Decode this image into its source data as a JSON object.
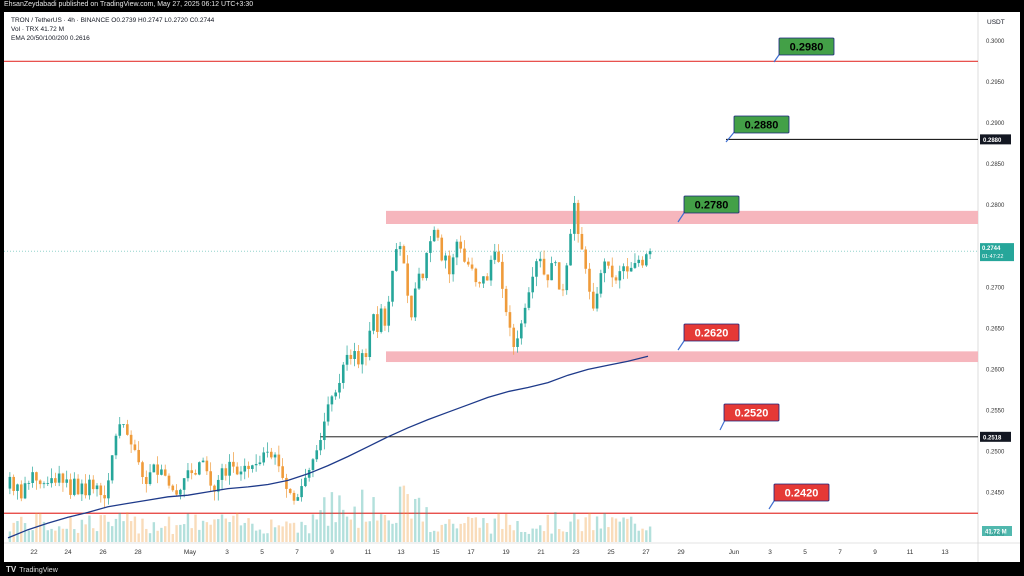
{
  "header": {
    "publisher_line": "EhsanZeydabadi published on TradingView.com, May 27, 2025 06:12 UTC+3:30"
  },
  "legend": {
    "symbol_line": "TRON / TetherUS · 4h · BINANCE  O0.2739  H0.2747  L0.2720  C0.2744",
    "volume_line": "Vol · TRX  41.72 M",
    "ema_line": "EMA 20/50/100/200  0.2616"
  },
  "footer": {
    "brand": "TradingView",
    "logo_glyph": "TV"
  },
  "colors": {
    "up": "#26a69a",
    "down": "#ef9b3a",
    "ema": "#1e3a8a",
    "red_line": "#e53935",
    "zone": "#f6b6bd",
    "label_green": "#43a047",
    "label_red": "#e53935"
  },
  "chart_data": {
    "type": "candlestick",
    "symbol": "TRON / TetherUS",
    "interval": "4h",
    "exchange": "BINANCE",
    "currency": "USDT",
    "ohlc_last": {
      "open": 0.2739,
      "high": 0.2747,
      "low": 0.272,
      "close": 0.2744
    },
    "volume_last": "41.72 M",
    "ema_value": 0.2616,
    "last_price_label": "0.2744",
    "countdown_label": "01:47:22",
    "y_axis": {
      "unit": "USDT",
      "ylim": [
        0.239,
        0.3035
      ],
      "ticks": [
        "0.3000",
        "0.2950",
        "0.2900",
        "0.2850",
        "0.2800",
        "0.2750",
        "0.2700",
        "0.2650",
        "0.2600",
        "0.2550",
        "0.2500",
        "0.2450",
        "0.2400"
      ]
    },
    "x_axis": {
      "tick_labels": [
        "22",
        "24",
        "26",
        "28",
        "May",
        "3",
        "5",
        "7",
        "9",
        "11",
        "13",
        "15",
        "17",
        "19",
        "21",
        "23",
        "25",
        "27",
        "29",
        "Jun",
        "3",
        "5",
        "7",
        "9",
        "11",
        "13"
      ]
    },
    "horizontal_lines": [
      {
        "price": 0.2975,
        "style": "red"
      },
      {
        "price": 0.288,
        "style": "black",
        "axis_label": "0.2880"
      },
      {
        "price": 0.2518,
        "style": "black",
        "axis_label": "0.2518"
      },
      {
        "price": 0.2425,
        "style": "red"
      }
    ],
    "zones": [
      {
        "from": 0.2777,
        "to": 0.2793
      },
      {
        "from": 0.2609,
        "to": 0.2622
      }
    ],
    "annotations": [
      {
        "text": "0.2980",
        "color": "green"
      },
      {
        "text": "0.2880",
        "color": "green"
      },
      {
        "text": "0.2780",
        "color": "green"
      },
      {
        "text": "0.2620",
        "color": "red"
      },
      {
        "text": "0.2520",
        "color": "red"
      },
      {
        "text": "0.2420",
        "color": "red"
      }
    ],
    "ema_curve": [
      [
        0,
        0.2395
      ],
      [
        20,
        0.2405
      ],
      [
        40,
        0.2413
      ],
      [
        60,
        0.242
      ],
      [
        80,
        0.2426
      ],
      [
        100,
        0.2433
      ],
      [
        120,
        0.2437
      ],
      [
        140,
        0.2441
      ],
      [
        160,
        0.2445
      ],
      [
        180,
        0.2447
      ],
      [
        200,
        0.2451
      ],
      [
        220,
        0.2455
      ],
      [
        240,
        0.2457
      ],
      [
        260,
        0.246
      ],
      [
        280,
        0.2465
      ],
      [
        300,
        0.2473
      ],
      [
        320,
        0.2483
      ],
      [
        340,
        0.2494
      ],
      [
        360,
        0.2506
      ],
      [
        380,
        0.2518
      ],
      [
        400,
        0.2529
      ],
      [
        420,
        0.2539
      ],
      [
        440,
        0.2548
      ],
      [
        460,
        0.2557
      ],
      [
        480,
        0.2566
      ],
      [
        500,
        0.2573
      ],
      [
        520,
        0.2578
      ],
      [
        540,
        0.2584
      ],
      [
        560,
        0.2593
      ],
      [
        580,
        0.26
      ],
      [
        600,
        0.2605
      ],
      [
        620,
        0.261
      ],
      [
        640,
        0.2616
      ]
    ],
    "price_path": [
      [
        0,
        0.2455
      ],
      [
        4,
        0.247
      ],
      [
        8,
        0.245
      ],
      [
        12,
        0.2462
      ],
      [
        16,
        0.2438
      ],
      [
        20,
        0.247
      ],
      [
        24,
        0.2458
      ],
      [
        28,
        0.2485
      ],
      [
        32,
        0.245
      ],
      [
        36,
        0.247
      ],
      [
        40,
        0.2452
      ],
      [
        44,
        0.2475
      ],
      [
        48,
        0.2455
      ],
      [
        52,
        0.2478
      ],
      [
        56,
        0.246
      ],
      [
        60,
        0.247
      ],
      [
        64,
        0.2445
      ],
      [
        68,
        0.2468
      ],
      [
        72,
        0.2448
      ],
      [
        76,
        0.2462
      ],
      [
        80,
        0.2445
      ],
      [
        84,
        0.247
      ],
      [
        88,
        0.245
      ],
      [
        92,
        0.2462
      ],
      [
        96,
        0.244
      ],
      [
        100,
        0.2445
      ],
      [
        104,
        0.248
      ],
      [
        108,
        0.251
      ],
      [
        112,
        0.253
      ],
      [
        116,
        0.2538
      ],
      [
        120,
        0.2525
      ],
      [
        124,
        0.251
      ],
      [
        128,
        0.2505
      ],
      [
        132,
        0.249
      ],
      [
        136,
        0.247
      ],
      [
        140,
        0.246
      ],
      [
        144,
        0.2475
      ],
      [
        148,
        0.2485
      ],
      [
        152,
        0.247
      ],
      [
        156,
        0.248
      ],
      [
        160,
        0.2468
      ],
      [
        164,
        0.2455
      ],
      [
        168,
        0.2452
      ],
      [
        172,
        0.2445
      ],
      [
        176,
        0.246
      ],
      [
        180,
        0.2475
      ],
      [
        184,
        0.248
      ],
      [
        188,
        0.2465
      ],
      [
        192,
        0.2485
      ],
      [
        196,
        0.2492
      ],
      [
        200,
        0.248
      ],
      [
        204,
        0.246
      ],
      [
        208,
        0.245
      ],
      [
        212,
        0.2465
      ],
      [
        216,
        0.248
      ],
      [
        220,
        0.247
      ],
      [
        224,
        0.249
      ],
      [
        228,
        0.248
      ],
      [
        232,
        0.247
      ],
      [
        236,
        0.2478
      ],
      [
        240,
        0.2485
      ],
      [
        244,
        0.2475
      ],
      [
        248,
        0.249
      ],
      [
        252,
        0.248
      ],
      [
        256,
        0.2495
      ],
      [
        260,
        0.2505
      ],
      [
        264,
        0.249
      ],
      [
        268,
        0.25
      ],
      [
        272,
        0.2485
      ],
      [
        276,
        0.247
      ],
      [
        280,
        0.2455
      ],
      [
        284,
        0.245
      ],
      [
        288,
        0.244
      ],
      [
        292,
        0.2445
      ],
      [
        296,
        0.246
      ],
      [
        300,
        0.247
      ],
      [
        304,
        0.248
      ],
      [
        308,
        0.2495
      ],
      [
        312,
        0.2505
      ],
      [
        316,
        0.252
      ],
      [
        320,
        0.255
      ],
      [
        324,
        0.2565
      ],
      [
        328,
        0.257
      ],
      [
        332,
        0.2575
      ],
      [
        336,
        0.26
      ],
      [
        340,
        0.262
      ],
      [
        344,
        0.261
      ],
      [
        348,
        0.2625
      ],
      [
        352,
        0.2605
      ],
      [
        356,
        0.262
      ],
      [
        360,
        0.2615
      ],
      [
        364,
        0.265
      ],
      [
        368,
        0.267
      ],
      [
        372,
        0.264
      ],
      [
        376,
        0.2685
      ],
      [
        380,
        0.264
      ],
      [
        384,
        0.2705
      ],
      [
        388,
        0.273
      ],
      [
        392,
        0.276
      ],
      [
        396,
        0.274
      ],
      [
        400,
        0.2715
      ],
      [
        404,
        0.265
      ],
      [
        408,
        0.269
      ],
      [
        412,
        0.272
      ],
      [
        416,
        0.2705
      ],
      [
        420,
        0.274
      ],
      [
        424,
        0.2755
      ],
      [
        428,
        0.277
      ],
      [
        432,
        0.276
      ],
      [
        436,
        0.273
      ],
      [
        440,
        0.274
      ],
      [
        444,
        0.271
      ],
      [
        448,
        0.2745
      ],
      [
        452,
        0.276
      ],
      [
        456,
        0.274
      ],
      [
        460,
        0.2725
      ],
      [
        464,
        0.273
      ],
      [
        468,
        0.2715
      ],
      [
        472,
        0.2695
      ],
      [
        476,
        0.272
      ],
      [
        480,
        0.27
      ],
      [
        484,
        0.273
      ],
      [
        488,
        0.2745
      ],
      [
        492,
        0.2735
      ],
      [
        496,
        0.27
      ],
      [
        500,
        0.267
      ],
      [
        504,
        0.265
      ],
      [
        508,
        0.2625
      ],
      [
        512,
        0.264
      ],
      [
        516,
        0.266
      ],
      [
        520,
        0.268
      ],
      [
        524,
        0.27
      ],
      [
        528,
        0.272
      ],
      [
        532,
        0.274
      ],
      [
        536,
        0.273
      ],
      [
        540,
        0.27
      ],
      [
        544,
        0.272
      ],
      [
        548,
        0.2745
      ],
      [
        552,
        0.27
      ],
      [
        556,
        0.269
      ],
      [
        560,
        0.272
      ],
      [
        564,
        0.276
      ],
      [
        568,
        0.2805
      ],
      [
        572,
        0.2765
      ],
      [
        576,
        0.2745
      ],
      [
        580,
        0.272
      ],
      [
        584,
        0.269
      ],
      [
        588,
        0.267
      ],
      [
        592,
        0.27
      ],
      [
        596,
        0.2725
      ],
      [
        600,
        0.2735
      ],
      [
        604,
        0.272
      ],
      [
        608,
        0.2705
      ],
      [
        612,
        0.2712
      ],
      [
        616,
        0.273
      ],
      [
        620,
        0.2718
      ],
      [
        624,
        0.2722
      ],
      [
        628,
        0.2728
      ],
      [
        632,
        0.2735
      ],
      [
        636,
        0.2725
      ],
      [
        640,
        0.274
      ],
      [
        644,
        0.2744
      ]
    ],
    "candle_count": 170
  }
}
